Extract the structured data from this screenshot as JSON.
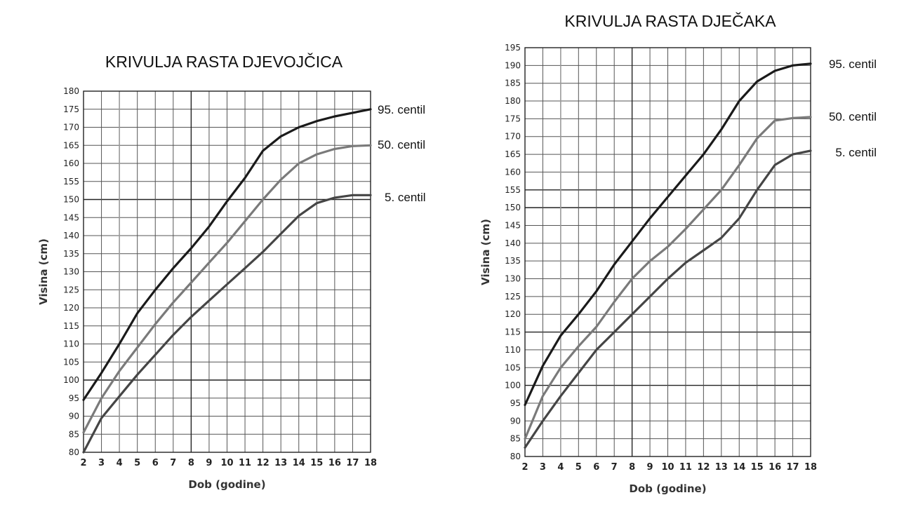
{
  "chart_data": [
    {
      "type": "line",
      "title": "KRIVULJA RASTA DJEVOJČICA",
      "xlabel": "Dob (godine)",
      "ylabel": "Visina (cm)",
      "xlim": [
        2,
        18
      ],
      "ylim": [
        80,
        180
      ],
      "ystep": 5,
      "grid": true,
      "legend": "right",
      "x": [
        2,
        3,
        4,
        5,
        6,
        7,
        8,
        9,
        10,
        11,
        12,
        13,
        14,
        15,
        16,
        17,
        18
      ],
      "series": [
        {
          "name": "95. centil",
          "color": "#1a1a1a",
          "values": [
            94.5,
            102,
            110,
            118.5,
            125,
            131,
            136.5,
            142.5,
            149.5,
            156,
            163.5,
            167.5,
            170,
            171.7,
            173,
            174,
            175
          ]
        },
        {
          "name": "50. centil",
          "color": "#7a7a7a",
          "values": [
            85.5,
            95,
            102.5,
            109,
            115.5,
            121.5,
            127,
            132.5,
            138,
            144,
            150,
            155.5,
            160,
            162.5,
            164,
            164.8,
            165
          ]
        },
        {
          "name": "5. centil",
          "color": "#454545",
          "values": [
            80,
            89.5,
            95.5,
            101.5,
            107,
            112.5,
            117.5,
            122,
            126.5,
            131,
            135.5,
            140.5,
            145.5,
            149,
            150.5,
            151.2,
            151.2
          ]
        }
      ]
    },
    {
      "type": "line",
      "title": "KRIVULJA RASTA DJEČAKA",
      "xlabel": "Dob (godine)",
      "ylabel": "Visina (cm)",
      "xlim": [
        2,
        18
      ],
      "ylim": [
        80,
        195
      ],
      "ystep": 5,
      "grid": true,
      "legend": "right",
      "x": [
        2,
        3,
        4,
        5,
        6,
        7,
        8,
        9,
        10,
        11,
        12,
        13,
        14,
        15,
        16,
        17,
        18
      ],
      "series": [
        {
          "name": "95. centil",
          "color": "#1a1a1a",
          "values": [
            94.5,
            105.5,
            114,
            120,
            126.5,
            134,
            140.5,
            147,
            153,
            159,
            165,
            172,
            180,
            185.5,
            188.5,
            190,
            190.5
          ]
        },
        {
          "name": "50. centil",
          "color": "#7a7a7a",
          "values": [
            85,
            97,
            105,
            111,
            116.5,
            123.5,
            130,
            135,
            139,
            144,
            149.5,
            155,
            162,
            169.5,
            174.5,
            175.2,
            175.5
          ]
        },
        {
          "name": "5. centil",
          "color": "#454545",
          "values": [
            82.5,
            90,
            97,
            103.5,
            110,
            115,
            120,
            125,
            130,
            134.5,
            138,
            141.5,
            147,
            155,
            162,
            165,
            166
          ]
        }
      ]
    }
  ]
}
